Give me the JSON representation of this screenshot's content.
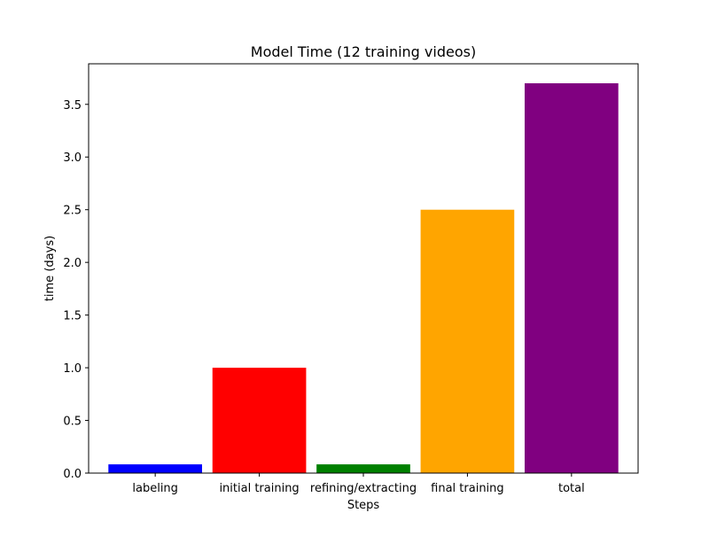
{
  "chart_data": {
    "type": "bar",
    "title": "Model Time (12 training videos)",
    "xlabel": "Steps",
    "ylabel": "time (days)",
    "categories": [
      "labeling",
      "initial training",
      "refining/extracting",
      "final training",
      "total"
    ],
    "values": [
      0.083,
      1.0,
      0.083,
      2.5,
      3.7
    ],
    "colors": [
      "#0000ff",
      "#ff0000",
      "#008000",
      "#ffa500",
      "#800080"
    ],
    "ylim": [
      0,
      3.885
    ],
    "yticks": [
      0.0,
      0.5,
      1.0,
      1.5,
      2.0,
      2.5,
      3.0,
      3.5
    ],
    "ytick_labels": [
      "0.0",
      "0.5",
      "1.0",
      "1.5",
      "2.0",
      "2.5",
      "3.0",
      "3.5"
    ],
    "grid": false,
    "legend": null
  }
}
